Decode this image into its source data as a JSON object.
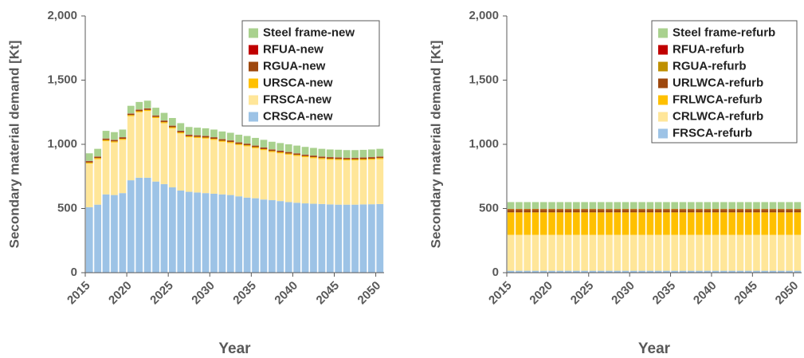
{
  "chart_data": [
    {
      "type": "bar",
      "stacked": true,
      "y_label": "Secondary material demand [Kt]",
      "x_label": "Year",
      "x": [
        2015,
        2016,
        2017,
        2018,
        2019,
        2020,
        2021,
        2022,
        2023,
        2024,
        2025,
        2026,
        2027,
        2028,
        2029,
        2030,
        2031,
        2032,
        2033,
        2034,
        2035,
        2036,
        2037,
        2038,
        2039,
        2040,
        2041,
        2042,
        2043,
        2044,
        2045,
        2046,
        2047,
        2048,
        2049,
        2050
      ],
      "xlim": [
        2015,
        2051
      ],
      "xticks": [
        2015,
        2020,
        2025,
        2030,
        2035,
        2040,
        2045,
        2050
      ],
      "ylim": [
        0,
        2000
      ],
      "yticks": [
        0,
        500,
        {
          "value": 1000,
          "label": "1,000"
        },
        {
          "value": 1500,
          "label": "1,500"
        },
        {
          "value": 2000,
          "label": "2,000"
        }
      ],
      "legend": "upper right",
      "series": [
        {
          "name": "CRSCA-new",
          "color": "#9dc3e6",
          "values": [
            510,
            530,
            610,
            605,
            620,
            720,
            740,
            740,
            710,
            690,
            665,
            640,
            630,
            625,
            620,
            615,
            610,
            605,
            595,
            585,
            580,
            570,
            565,
            558,
            550,
            545,
            540,
            537,
            535,
            532,
            530,
            530,
            530,
            532,
            533,
            535
          ]
        },
        {
          "name": "FRSCA-new",
          "color": "#ffe699",
          "values": [
            340,
            355,
            415,
            410,
            415,
            500,
            510,
            520,
            495,
            475,
            460,
            445,
            425,
            425,
            425,
            420,
            410,
            405,
            400,
            400,
            390,
            385,
            375,
            372,
            370,
            365,
            360,
            355,
            350,
            348,
            348,
            345,
            345,
            345,
            347,
            350
          ]
        },
        {
          "name": "URSCA-new",
          "color": "#ffc000",
          "values": [
            8,
            8,
            8,
            8,
            8,
            8,
            8,
            8,
            8,
            8,
            8,
            8,
            8,
            8,
            8,
            8,
            8,
            8,
            8,
            8,
            8,
            8,
            8,
            8,
            8,
            8,
            8,
            8,
            8,
            8,
            8,
            8,
            8,
            8,
            8,
            8
          ]
        },
        {
          "name": "RGUA-new",
          "color": "#9e480e",
          "values": [
            10,
            10,
            10,
            10,
            10,
            10,
            10,
            10,
            10,
            10,
            10,
            10,
            10,
            10,
            10,
            10,
            10,
            10,
            10,
            10,
            10,
            10,
            10,
            10,
            10,
            10,
            10,
            10,
            10,
            10,
            10,
            10,
            10,
            10,
            10,
            10
          ]
        },
        {
          "name": "RFUA-new",
          "color": "#c00000",
          "values": [
            2,
            2,
            2,
            2,
            2,
            2,
            2,
            2,
            2,
            2,
            2,
            2,
            2,
            2,
            2,
            2,
            2,
            2,
            2,
            2,
            2,
            2,
            2,
            2,
            2,
            2,
            2,
            2,
            2,
            2,
            2,
            2,
            2,
            2,
            2,
            2
          ]
        },
        {
          "name": "Steel frame-new",
          "color": "#a9d18e",
          "values": [
            60,
            60,
            60,
            60,
            60,
            60,
            60,
            60,
            60,
            60,
            60,
            60,
            60,
            60,
            60,
            60,
            60,
            60,
            60,
            60,
            60,
            60,
            60,
            60,
            60,
            60,
            60,
            60,
            60,
            60,
            60,
            60,
            60,
            60,
            60,
            60
          ]
        }
      ]
    },
    {
      "type": "bar",
      "stacked": true,
      "y_label": "Secondary material demand [Kt]",
      "x_label": "Year",
      "x": [
        2015,
        2016,
        2017,
        2018,
        2019,
        2020,
        2021,
        2022,
        2023,
        2024,
        2025,
        2026,
        2027,
        2028,
        2029,
        2030,
        2031,
        2032,
        2033,
        2034,
        2035,
        2036,
        2037,
        2038,
        2039,
        2040,
        2041,
        2042,
        2043,
        2044,
        2045,
        2046,
        2047,
        2048,
        2049,
        2050
      ],
      "xlim": [
        2015,
        2051
      ],
      "xticks": [
        2015,
        2020,
        2025,
        2030,
        2035,
        2040,
        2045,
        2050
      ],
      "ylim": [
        0,
        2000
      ],
      "yticks": [
        0,
        500,
        {
          "value": 1000,
          "label": "1,000"
        },
        {
          "value": 1500,
          "label": "1,500"
        },
        {
          "value": 2000,
          "label": "2,000"
        }
      ],
      "legend": "upper right",
      "series": [
        {
          "name": "FRSCA-refurb",
          "color": "#9dc3e6",
          "values": [
            15,
            15,
            15,
            15,
            15,
            15,
            15,
            15,
            15,
            15,
            15,
            15,
            15,
            15,
            15,
            15,
            15,
            15,
            15,
            15,
            15,
            15,
            15,
            15,
            15,
            15,
            15,
            15,
            15,
            15,
            15,
            15,
            15,
            15,
            15,
            15
          ]
        },
        {
          "name": "CRLWCA-refurb",
          "color": "#ffe699",
          "values": [
            280,
            280,
            280,
            280,
            280,
            280,
            280,
            280,
            280,
            280,
            280,
            280,
            280,
            280,
            280,
            280,
            280,
            280,
            280,
            280,
            280,
            280,
            280,
            280,
            280,
            280,
            280,
            280,
            280,
            280,
            280,
            280,
            280,
            280,
            280,
            280
          ]
        },
        {
          "name": "FRLWCA-refurb",
          "color": "#ffc000",
          "values": [
            175,
            175,
            175,
            175,
            175,
            175,
            175,
            175,
            175,
            175,
            175,
            175,
            175,
            175,
            175,
            175,
            175,
            175,
            175,
            175,
            175,
            175,
            175,
            175,
            175,
            175,
            175,
            175,
            175,
            175,
            175,
            175,
            175,
            175,
            175,
            175
          ]
        },
        {
          "name": "URLWCA-refurb",
          "color": "#9e480e",
          "values": [
            20,
            20,
            20,
            20,
            20,
            20,
            20,
            20,
            20,
            20,
            20,
            20,
            20,
            20,
            20,
            20,
            20,
            20,
            20,
            20,
            20,
            20,
            20,
            20,
            20,
            20,
            20,
            20,
            20,
            20,
            20,
            20,
            20,
            20,
            20,
            20
          ]
        },
        {
          "name": "RGUA-refurb",
          "color": "#bf9000",
          "values": [
            5,
            5,
            5,
            5,
            5,
            5,
            5,
            5,
            5,
            5,
            5,
            5,
            5,
            5,
            5,
            5,
            5,
            5,
            5,
            5,
            5,
            5,
            5,
            5,
            5,
            5,
            5,
            5,
            5,
            5,
            5,
            5,
            5,
            5,
            5,
            5
          ]
        },
        {
          "name": "RFUA-refurb",
          "color": "#c00000",
          "values": [
            2,
            2,
            2,
            2,
            2,
            2,
            2,
            2,
            2,
            2,
            2,
            2,
            2,
            2,
            2,
            2,
            2,
            2,
            2,
            2,
            2,
            2,
            2,
            2,
            2,
            2,
            2,
            2,
            2,
            2,
            2,
            2,
            2,
            2,
            2,
            2
          ]
        },
        {
          "name": "Steel frame-refurb",
          "color": "#a9d18e",
          "values": [
            53,
            53,
            53,
            53,
            53,
            53,
            53,
            53,
            53,
            53,
            53,
            53,
            53,
            53,
            53,
            53,
            53,
            53,
            53,
            53,
            53,
            53,
            53,
            53,
            53,
            53,
            53,
            53,
            53,
            53,
            53,
            53,
            53,
            53,
            53,
            53
          ]
        }
      ]
    }
  ]
}
